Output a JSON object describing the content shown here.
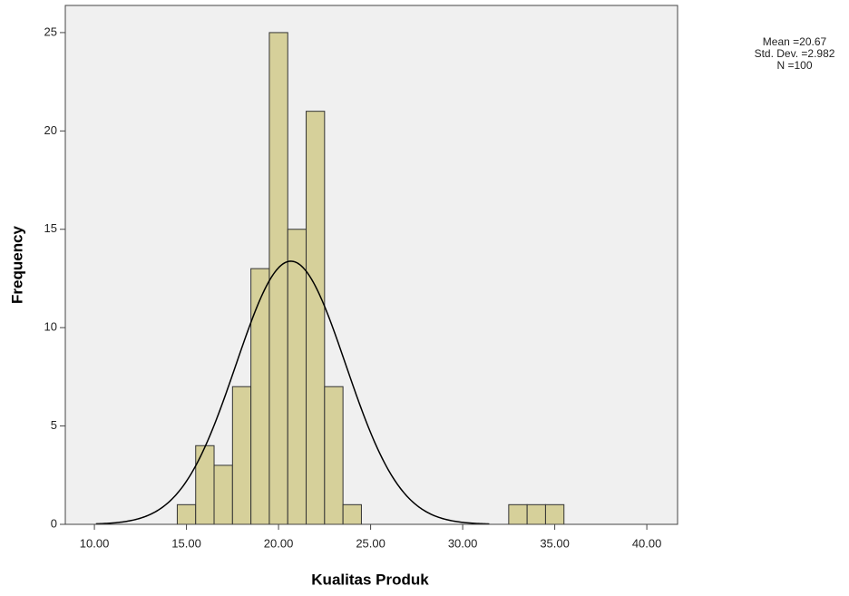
{
  "chart_data": {
    "type": "histogram",
    "x_label": "Kualitas Produk",
    "y_label": "Frequency",
    "bins": [
      14.5,
      15.5,
      16.5,
      17.5,
      18.5,
      19.5,
      20.5,
      21.5,
      22.5,
      23.5,
      24.5,
      25.5,
      26.5,
      27.5,
      28.5,
      29.5,
      30.5,
      31.5,
      32.5,
      33.5,
      34.5,
      35.5
    ],
    "values": [
      1,
      4,
      3,
      7,
      13,
      25,
      15,
      21,
      7,
      1,
      0,
      0,
      0,
      0,
      0,
      0,
      0,
      0,
      1,
      1,
      1
    ],
    "color": "#d6d09a",
    "curve_color": "#000000",
    "xlim": [
      8.42,
      41.67
    ],
    "ylim": [
      0,
      26.38
    ],
    "xticks": [
      {
        "value": 10,
        "label": "10.00"
      },
      {
        "value": 15,
        "label": "15.00"
      },
      {
        "value": 20,
        "label": "20.00"
      },
      {
        "value": 25,
        "label": "25.00"
      },
      {
        "value": 30,
        "label": "30.00"
      },
      {
        "value": 35,
        "label": "35.00"
      },
      {
        "value": 40,
        "label": "40.00"
      }
    ],
    "yticks": [
      0,
      5,
      10,
      15,
      20,
      25
    ],
    "stats": [
      {
        "label": "Mean =",
        "value": 20.67
      },
      {
        "label": "Std. Dev. =",
        "value": 2.982
      },
      {
        "label": "N =",
        "value": 100
      }
    ]
  }
}
